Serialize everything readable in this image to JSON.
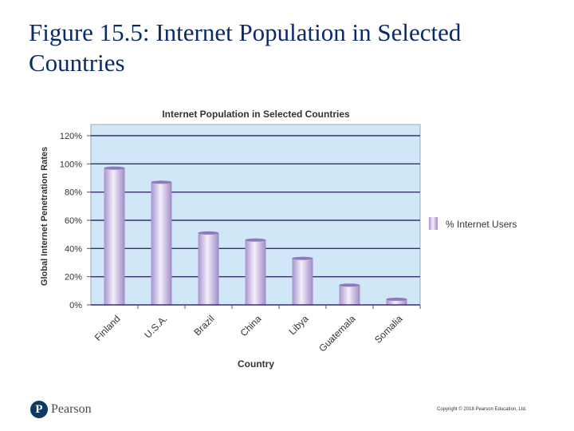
{
  "slide": {
    "title": "Figure 15.5: Internet Population in Selected Countries",
    "logo_text": "Pearson",
    "copyright": "Copyright © 2018 Pearson Education, Ltd."
  },
  "chart_data": {
    "type": "bar",
    "title": "Internet Population in Selected Countries",
    "xlabel": "Country",
    "ylabel": "Global Internet Penetration Rates",
    "categories": [
      "Finland",
      "U.S.A.",
      "Brazil",
      "China",
      "Libya",
      "Guatemala",
      "Somalia"
    ],
    "series": [
      {
        "name": "% Internet Users",
        "values": [
          97,
          87,
          51,
          46,
          33,
          14,
          4
        ]
      }
    ],
    "ylim": [
      0,
      120
    ],
    "yticks": [
      0,
      20,
      40,
      60,
      80,
      100,
      120
    ],
    "ytick_labels": [
      "0%",
      "20%",
      "40%",
      "60%",
      "80%",
      "100%",
      "120%"
    ],
    "grid": true,
    "legend": "right",
    "colors": {
      "plot_bg": "#cfe7f7",
      "gridline": "#3b2d6e",
      "bar": "#b9a6d8",
      "bar_light": "#f2eef9",
      "title": "#0a2a6b"
    }
  }
}
